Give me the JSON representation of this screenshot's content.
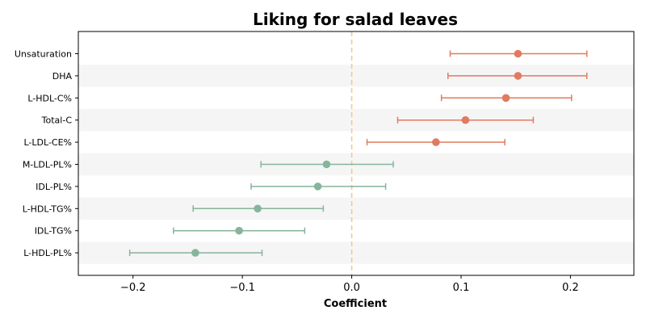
{
  "chart_data": {
    "type": "forest-plot",
    "title": "Liking for salad leaves",
    "xlabel": "Coefficient",
    "xlim": [
      -0.25,
      0.258
    ],
    "xticks": [
      -0.2,
      -0.1,
      0.0,
      0.1,
      0.2
    ],
    "xtick_labels": [
      "−0.2",
      "−0.1",
      "0.0",
      "0.1",
      "0.2"
    ],
    "reference_line": 0.0,
    "colors": {
      "positive": "#e07b5f",
      "negative": "#86b59b",
      "reference": "#f5c98a",
      "band": "#f5f5f5"
    },
    "categories": [
      "Unsaturation",
      "DHA",
      "L-HDL-C%",
      "Total-C",
      "L-LDL-CE%",
      "M-LDL-PL%",
      "IDL-PL%",
      "L-HDL-TG%",
      "IDL-TG%",
      "L-HDL-PL%"
    ],
    "estimates": [
      0.152,
      0.152,
      0.141,
      0.104,
      0.077,
      -0.023,
      -0.031,
      -0.086,
      -0.103,
      -0.143
    ],
    "ci_lower": [
      0.09,
      0.088,
      0.082,
      0.042,
      0.014,
      -0.083,
      -0.092,
      -0.145,
      -0.163,
      -0.203
    ],
    "ci_upper": [
      0.215,
      0.215,
      0.201,
      0.166,
      0.14,
      0.038,
      0.031,
      -0.026,
      -0.043,
      -0.082
    ]
  }
}
